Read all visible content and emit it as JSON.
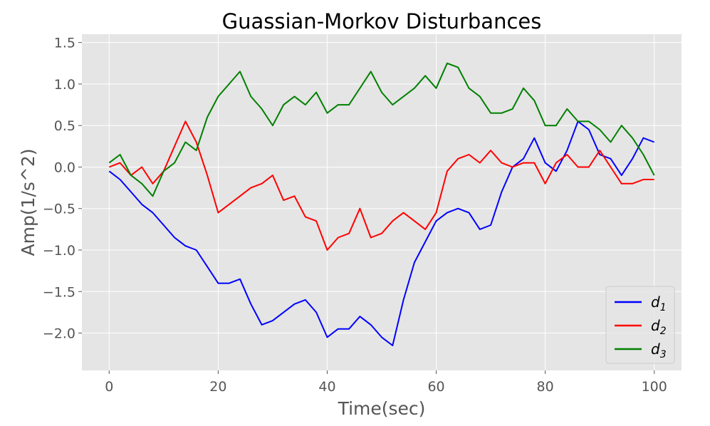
{
  "chart_data": {
    "type": "line",
    "title": "Guassian-Morkov Disturbances",
    "xlabel": "Time(sec)",
    "ylabel": "Amp(1/s^2)",
    "xlim": [
      -5,
      105
    ],
    "ylim": [
      -2.45,
      1.6
    ],
    "xticks": [
      0,
      20,
      40,
      60,
      80,
      100
    ],
    "xtick_labels": [
      "0",
      "20",
      "40",
      "60",
      "80",
      "100"
    ],
    "yticks": [
      1.5,
      1.0,
      0.5,
      0.0,
      -0.5,
      -1.0,
      -1.5,
      -2.0
    ],
    "ytick_labels": [
      "1.5",
      "1.0",
      "0.5",
      "0.0",
      "−0.5",
      "−1.0",
      "−1.5",
      "−2.0"
    ],
    "grid": true,
    "legend_position": "bottom-right",
    "series": [
      {
        "name": "d1",
        "legend_base": "d",
        "legend_sub": "1",
        "color": "#0000ff",
        "x": [
          0,
          2,
          4,
          6,
          8,
          10,
          12,
          14,
          16,
          18,
          20,
          22,
          24,
          26,
          28,
          30,
          32,
          34,
          36,
          38,
          40,
          42,
          44,
          46,
          48,
          50,
          52,
          54,
          56,
          58,
          60,
          62,
          64,
          66,
          68,
          70,
          72,
          74,
          76,
          78,
          80,
          82,
          84,
          86,
          88,
          90,
          92,
          94,
          96,
          98,
          100
        ],
        "y": [
          -0.05,
          -0.15,
          -0.3,
          -0.45,
          -0.55,
          -0.7,
          -0.85,
          -0.95,
          -1.0,
          -1.2,
          -1.4,
          -1.4,
          -1.35,
          -1.65,
          -1.9,
          -1.85,
          -1.75,
          -1.65,
          -1.6,
          -1.75,
          -2.05,
          -1.95,
          -1.95,
          -1.8,
          -1.9,
          -2.05,
          -2.15,
          -1.6,
          -1.15,
          -0.9,
          -0.65,
          -0.55,
          -0.5,
          -0.55,
          -0.75,
          -0.7,
          -0.3,
          0.0,
          0.1,
          0.35,
          0.05,
          -0.05,
          0.2,
          0.55,
          0.45,
          0.15,
          0.1,
          -0.1,
          0.1,
          0.35,
          0.3
        ]
      },
      {
        "name": "d2",
        "legend_base": "d",
        "legend_sub": "2",
        "color": "#ff0000",
        "x": [
          0,
          2,
          4,
          6,
          8,
          10,
          12,
          14,
          16,
          18,
          20,
          22,
          24,
          26,
          28,
          30,
          32,
          34,
          36,
          38,
          40,
          42,
          44,
          46,
          48,
          50,
          52,
          54,
          56,
          58,
          60,
          62,
          64,
          66,
          68,
          70,
          72,
          74,
          76,
          78,
          80,
          82,
          84,
          86,
          88,
          90,
          92,
          94,
          96,
          98,
          100
        ],
        "y": [
          0.0,
          0.05,
          -0.1,
          0.0,
          -0.2,
          -0.05,
          0.25,
          0.55,
          0.3,
          -0.1,
          -0.55,
          -0.45,
          -0.35,
          -0.25,
          -0.2,
          -0.1,
          -0.4,
          -0.35,
          -0.6,
          -0.65,
          -1.0,
          -0.85,
          -0.8,
          -0.5,
          -0.85,
          -0.8,
          -0.65,
          -0.55,
          -0.65,
          -0.75,
          -0.55,
          -0.05,
          0.1,
          0.15,
          0.05,
          0.2,
          0.05,
          0.0,
          0.05,
          0.05,
          -0.2,
          0.05,
          0.15,
          0.0,
          0.0,
          0.2,
          0.0,
          -0.2,
          -0.2,
          -0.15,
          -0.15
        ]
      },
      {
        "name": "d3",
        "legend_base": "d",
        "legend_sub": "3",
        "color": "#008000",
        "x": [
          0,
          2,
          4,
          6,
          8,
          10,
          12,
          14,
          16,
          18,
          20,
          22,
          24,
          26,
          28,
          30,
          32,
          34,
          36,
          38,
          40,
          42,
          44,
          46,
          48,
          50,
          52,
          54,
          56,
          58,
          60,
          62,
          64,
          66,
          68,
          70,
          72,
          74,
          76,
          78,
          80,
          82,
          84,
          86,
          88,
          90,
          92,
          94,
          96,
          98,
          100
        ],
        "y": [
          0.05,
          0.15,
          -0.1,
          -0.2,
          -0.35,
          -0.05,
          0.05,
          0.3,
          0.2,
          0.6,
          0.85,
          1.0,
          1.15,
          0.85,
          0.7,
          0.5,
          0.75,
          0.85,
          0.75,
          0.9,
          0.65,
          0.75,
          0.75,
          0.95,
          1.15,
          0.9,
          0.75,
          0.85,
          0.95,
          1.1,
          0.95,
          1.25,
          1.2,
          0.95,
          0.85,
          0.65,
          0.65,
          0.7,
          0.95,
          0.8,
          0.5,
          0.5,
          0.7,
          0.55,
          0.55,
          0.45,
          0.3,
          0.5,
          0.35,
          0.15,
          -0.1
        ]
      }
    ]
  }
}
